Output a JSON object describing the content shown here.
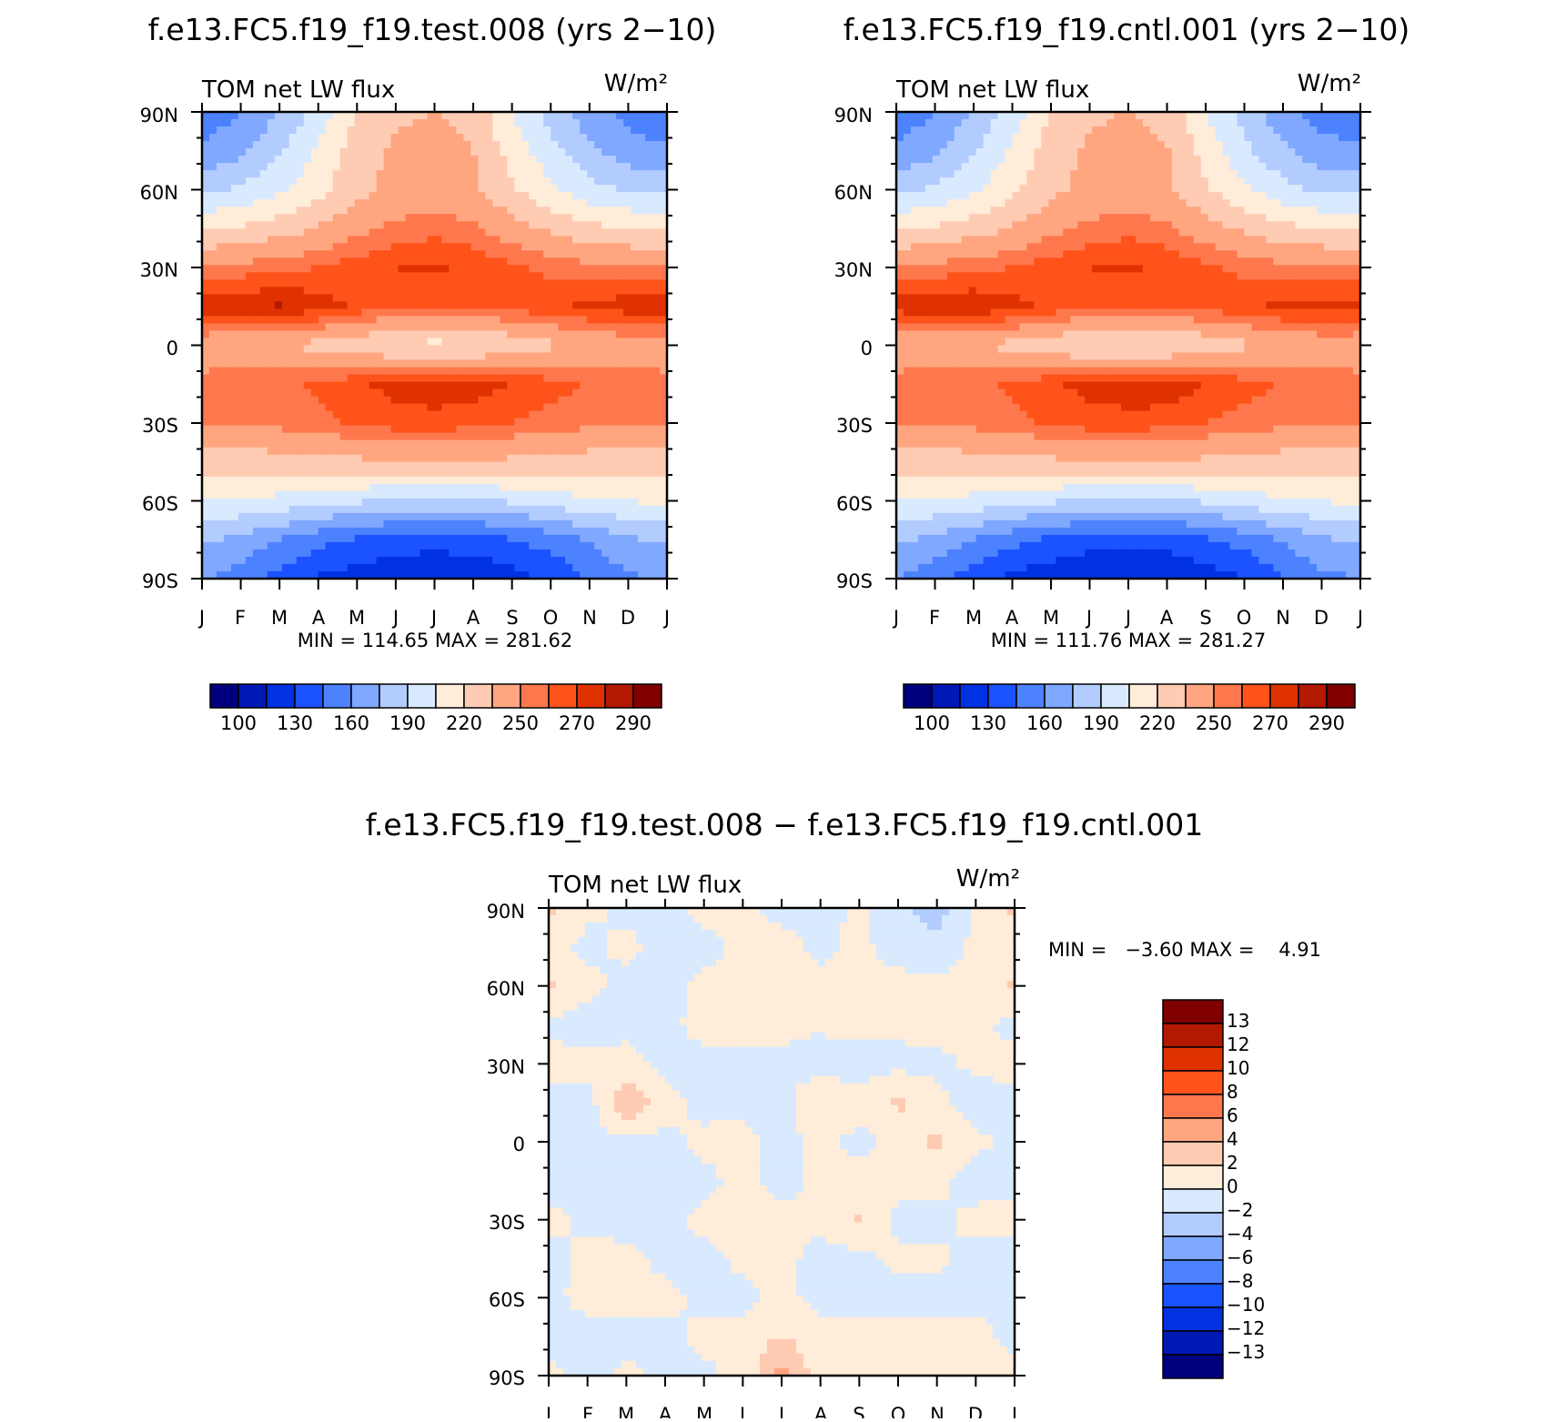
{
  "colors": {
    "panel_scale": [
      "#00007f",
      "#0018b4",
      "#0032e1",
      "#1a53ff",
      "#4d82ff",
      "#80a8ff",
      "#b3ccff",
      "#d9eaff",
      "#ffecd9",
      "#ffcbb3",
      "#ffa680",
      "#ff784d",
      "#ff531a",
      "#e03200",
      "#b31800",
      "#800000"
    ],
    "diff_scale": [
      "#00007f",
      "#0018b4",
      "#0032e1",
      "#1a53ff",
      "#4d82ff",
      "#80a8ff",
      "#b3ccff",
      "#d9eaff",
      "#ffecd9",
      "#ffcbb3",
      "#ffa680",
      "#ff784d",
      "#ff531a",
      "#e03200",
      "#b31800",
      "#800000"
    ]
  },
  "chart_data": [
    {
      "type": "heatmap",
      "id": "test",
      "title": "f.e13.FC5.f19_f19.test.008 (yrs 2−10)",
      "left_label": "TOM net LW flux",
      "units": "W/m²",
      "x_ticks": [
        "J",
        "F",
        "M",
        "A",
        "M",
        "J",
        "J",
        "A",
        "S",
        "O",
        "N",
        "D",
        "J"
      ],
      "y_ticks": [
        "90N",
        "60N",
        "30N",
        "0",
        "30S",
        "60S",
        "90S"
      ],
      "y_values": [
        90,
        60,
        30,
        0,
        -30,
        -60,
        -90
      ],
      "months": [
        0,
        1,
        2,
        3,
        4,
        5,
        6,
        7,
        8,
        9,
        10,
        11,
        12
      ],
      "stats": "MIN = 114.65 MAX = 281.62",
      "colorbar_labels": [
        "100",
        "130",
        "160",
        "190",
        "220",
        "250",
        "270",
        "290"
      ],
      "lat_grid": [
        90,
        75,
        60,
        45,
        30,
        15,
        0,
        -15,
        -30,
        -45,
        -60,
        -75,
        -90
      ],
      "z": [
        [
          150,
          160,
          175,
          195,
          222,
          232,
          235,
          230,
          205,
          185,
          165,
          155,
          150
        ],
        [
          162,
          172,
          188,
          208,
          228,
          238,
          240,
          235,
          214,
          195,
          178,
          166,
          162
        ],
        [
          185,
          192,
          202,
          215,
          230,
          240,
          242,
          238,
          222,
          208,
          195,
          188,
          185
        ],
        [
          218,
          222,
          228,
          236,
          246,
          253,
          256,
          252,
          242,
          232,
          224,
          220,
          218
        ],
        [
          252,
          254,
          257,
          260,
          265,
          270,
          272,
          268,
          262,
          257,
          254,
          252,
          252
        ],
        [
          276,
          279,
          281,
          275,
          268,
          262,
          262,
          262,
          265,
          268,
          272,
          276,
          276
        ],
        [
          240,
          238,
          236,
          230,
          225,
          218,
          215,
          218,
          225,
          232,
          238,
          241,
          240
        ],
        [
          255,
          257,
          258,
          262,
          268,
          274,
          277,
          275,
          270,
          264,
          259,
          256,
          255
        ],
        [
          250,
          252,
          254,
          257,
          262,
          265,
          266,
          264,
          260,
          256,
          253,
          251,
          250
        ],
        [
          226,
          227,
          228,
          230,
          232,
          234,
          235,
          234,
          232,
          230,
          228,
          227,
          226
        ],
        [
          206,
          204,
          200,
          196,
          192,
          188,
          186,
          188,
          192,
          198,
          203,
          206,
          206
        ],
        [
          178,
          170,
          160,
          150,
          143,
          138,
          136,
          138,
          144,
          152,
          162,
          172,
          178
        ],
        [
          162,
          152,
          140,
          128,
          122,
          118,
          116,
          118,
          124,
          132,
          146,
          158,
          162
        ]
      ]
    },
    {
      "type": "heatmap",
      "id": "cntl",
      "title": "f.e13.FC5.f19_f19.cntl.001 (yrs 2−10)",
      "left_label": "TOM net LW flux",
      "units": "W/m²",
      "x_ticks": [
        "J",
        "F",
        "M",
        "A",
        "M",
        "J",
        "J",
        "A",
        "S",
        "O",
        "N",
        "D",
        "J"
      ],
      "y_ticks": [
        "90N",
        "60N",
        "30N",
        "0",
        "30S",
        "60S",
        "90S"
      ],
      "y_values": [
        90,
        60,
        30,
        0,
        -30,
        -60,
        -90
      ],
      "months": [
        0,
        1,
        2,
        3,
        4,
        5,
        6,
        7,
        8,
        9,
        10,
        11,
        12
      ],
      "stats": "MIN = 111.76 MAX = 281.27",
      "colorbar_labels": [
        "100",
        "130",
        "160",
        "190",
        "220",
        "250",
        "270",
        "290"
      ],
      "lat_grid": [
        90,
        75,
        60,
        45,
        30,
        15,
        0,
        -15,
        -30,
        -45,
        -60,
        -75,
        -90
      ],
      "z": [
        [
          150,
          160,
          176,
          196,
          222,
          232,
          236,
          230,
          206,
          184,
          164,
          154,
          150
        ],
        [
          162,
          172,
          188,
          208,
          228,
          238,
          240,
          236,
          214,
          194,
          178,
          165,
          162
        ],
        [
          185,
          192,
          203,
          216,
          231,
          240,
          242,
          238,
          222,
          207,
          195,
          187,
          185
        ],
        [
          218,
          222,
          228,
          236,
          246,
          253,
          256,
          252,
          242,
          232,
          224,
          220,
          218
        ],
        [
          252,
          254,
          257,
          260,
          265,
          270,
          272,
          268,
          262,
          257,
          254,
          252,
          252
        ],
        [
          275,
          278,
          279,
          274,
          268,
          262,
          262,
          262,
          265,
          268,
          272,
          275,
          275
        ],
        [
          240,
          238,
          236,
          230,
          224,
          218,
          216,
          218,
          225,
          232,
          238,
          241,
          240
        ],
        [
          255,
          257,
          258,
          262,
          268,
          274,
          277,
          278,
          270,
          264,
          259,
          256,
          255
        ],
        [
          250,
          252,
          254,
          257,
          262,
          265,
          266,
          264,
          260,
          256,
          253,
          251,
          250
        ],
        [
          226,
          227,
          228,
          230,
          232,
          234,
          235,
          234,
          232,
          230,
          228,
          227,
          226
        ],
        [
          206,
          204,
          200,
          196,
          192,
          188,
          186,
          188,
          192,
          198,
          203,
          206,
          206
        ],
        [
          178,
          170,
          160,
          150,
          142,
          137,
          135,
          137,
          143,
          151,
          162,
          172,
          178
        ],
        [
          160,
          150,
          138,
          126,
          120,
          116,
          113,
          116,
          122,
          130,
          144,
          156,
          160
        ]
      ]
    },
    {
      "type": "heatmap",
      "id": "diff",
      "title": "f.e13.FC5.f19_f19.test.008 − f.e13.FC5.f19_f19.cntl.001",
      "left_label": "TOM net LW flux",
      "units": "W/m²",
      "x_ticks": [
        "J",
        "F",
        "M",
        "A",
        "M",
        "J",
        "J",
        "A",
        "S",
        "O",
        "N",
        "D",
        "J"
      ],
      "y_ticks": [
        "90N",
        "60N",
        "30N",
        "0",
        "30S",
        "60S",
        "90S"
      ],
      "y_values": [
        90,
        60,
        30,
        0,
        -30,
        -60,
        -90
      ],
      "months": [
        0,
        1,
        2,
        3,
        4,
        5,
        6,
        7,
        8,
        9,
        10,
        11,
        12
      ],
      "stats": "MIN =   −3.60 MAX =    4.91",
      "colorbar_labels": [
        "13",
        "12",
        "10",
        "8",
        "6",
        "4",
        "2",
        "0",
        "−2",
        "−4",
        "−6",
        "−8",
        "−10",
        "−12",
        "−13"
      ],
      "lat_grid": [
        90,
        75,
        60,
        45,
        30,
        15,
        0,
        -15,
        -30,
        -45,
        -60,
        -75,
        -90
      ],
      "z": [
        [
          2.5,
          0.5,
          -0.5,
          -0.8,
          0.6,
          0.4,
          -0.5,
          -0.6,
          0.3,
          -1.5,
          -3.0,
          0.4,
          2.5
        ],
        [
          0.8,
          -0.6,
          0.5,
          -0.7,
          -0.6,
          0.5,
          0.6,
          -0.4,
          0.5,
          -0.8,
          -1.2,
          0.5,
          0.8
        ],
        [
          2.2,
          0.6,
          -0.7,
          -0.6,
          0.5,
          0.6,
          0.4,
          0.5,
          0.5,
          0.6,
          0.5,
          0.6,
          2.2
        ],
        [
          -0.6,
          -0.8,
          -0.5,
          -0.6,
          0.7,
          0.6,
          0.5,
          0.4,
          0.6,
          0.5,
          0.7,
          0.5,
          -0.6
        ],
        [
          0.8,
          0.7,
          0.6,
          -0.6,
          -0.6,
          -0.5,
          -0.4,
          -1.2,
          -0.8,
          -0.6,
          -0.5,
          0.4,
          0.8
        ],
        [
          -0.6,
          -1.0,
          3.8,
          0.8,
          -0.7,
          -0.6,
          -0.8,
          2.1,
          0.7,
          2.4,
          0.6,
          -1.2,
          -0.6
        ],
        [
          -0.6,
          -0.8,
          -0.5,
          -0.6,
          0.6,
          0.7,
          -0.6,
          0.5,
          -0.6,
          0.6,
          2.6,
          0.5,
          -0.6
        ],
        [
          -0.7,
          -1.1,
          -0.6,
          -0.7,
          -0.6,
          0.6,
          -0.7,
          0.5,
          0.8,
          0.6,
          0.5,
          -0.9,
          -0.7
        ],
        [
          0.6,
          -0.5,
          -0.7,
          -0.5,
          0.5,
          0.6,
          0.5,
          0.4,
          2.1,
          -0.6,
          -0.5,
          0.6,
          0.6
        ],
        [
          -0.6,
          0.5,
          0.6,
          -0.6,
          -0.6,
          0.5,
          0.6,
          -0.7,
          -0.6,
          0.5,
          0.4,
          -0.6,
          -0.6
        ],
        [
          -0.5,
          0.6,
          0.5,
          0.6,
          -0.6,
          -0.6,
          0.5,
          -0.6,
          -0.5,
          -0.6,
          -0.7,
          -0.6,
          -0.5
        ],
        [
          -0.6,
          -0.7,
          -0.6,
          -0.7,
          0.6,
          0.5,
          2.2,
          0.5,
          0.6,
          0.5,
          0.6,
          0.6,
          -0.6
        ],
        [
          0.6,
          -0.8,
          0.5,
          -0.6,
          -0.5,
          0.6,
          4.9,
          0.8,
          0.6,
          0.7,
          0.6,
          0.5,
          0.6
        ]
      ]
    }
  ]
}
